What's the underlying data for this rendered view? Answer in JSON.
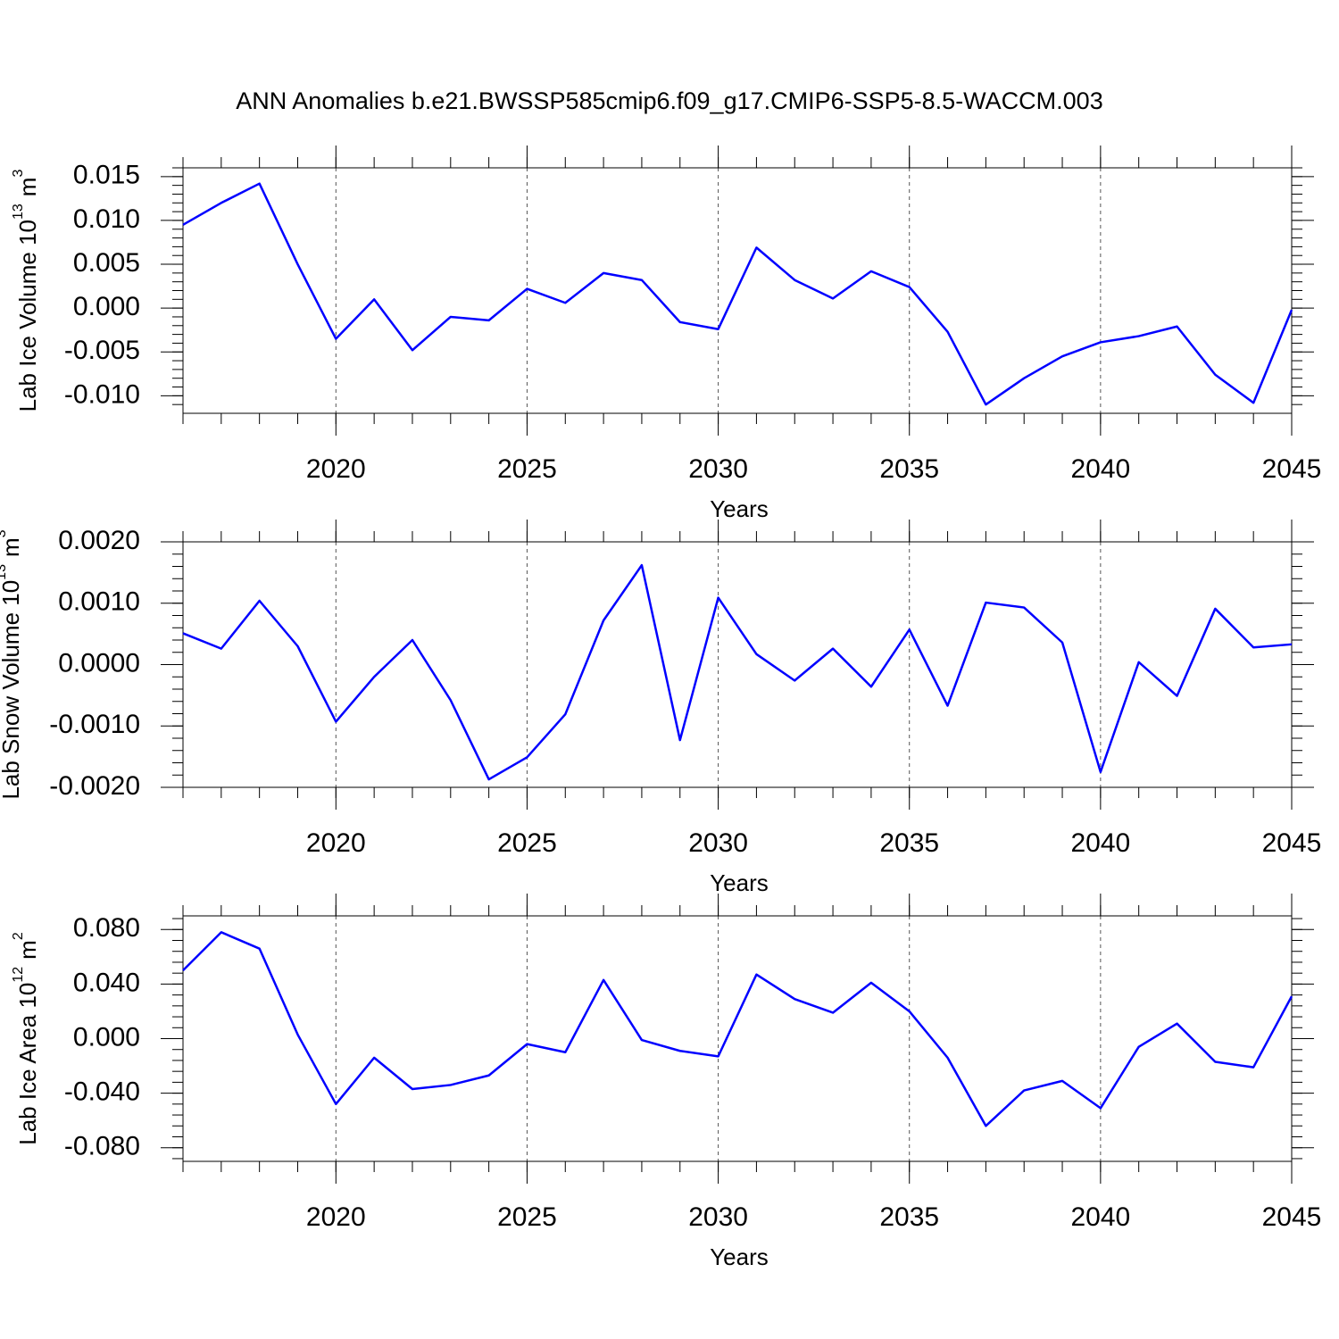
{
  "title": "ANN Anomalies b.e21.BWSSP585cmip6.f09_g17.CMIP6-SSP5-8.5-WACCM.003",
  "chart_data": [
    {
      "type": "line",
      "xlabel": "Years",
      "ylabel": {
        "text": "Lab Ice Volume 10",
        "exp": "13",
        "unit": "m",
        "unit_exp": "3"
      },
      "x": [
        2016,
        2017,
        2018,
        2019,
        2020,
        2021,
        2022,
        2023,
        2024,
        2025,
        2026,
        2027,
        2028,
        2029,
        2030,
        2031,
        2032,
        2033,
        2034,
        2035,
        2036,
        2037,
        2038,
        2039,
        2040,
        2041,
        2042,
        2043,
        2044,
        2045
      ],
      "series": [
        {
          "color": "#0000ff",
          "values": [
            0.0095,
            0.012,
            0.0142,
            0.005,
            -0.0035,
            0.001,
            -0.0048,
            -0.001,
            -0.0014,
            0.0022,
            0.0006,
            0.004,
            0.0032,
            -0.0016,
            -0.0024,
            0.0069,
            0.0032,
            0.0011,
            0.0042,
            0.0024,
            -0.0027,
            -0.011,
            -0.008,
            -0.0055,
            -0.0039,
            -0.0032,
            -0.0021,
            -0.0076,
            -0.0108,
            -0.0002
          ]
        }
      ],
      "xlim": [
        2016,
        2045
      ],
      "xticks": [
        2020,
        2025,
        2030,
        2035,
        2040,
        2045
      ],
      "ylim": [
        -0.012,
        0.016
      ],
      "yticks": [
        0.015,
        {
          "value": 0.01,
          "label": "0.010"
        },
        0.005,
        {
          "value": 0,
          "label": "0.000"
        },
        -0.005,
        {
          "value": -0.01,
          "label": "-0.010"
        }
      ],
      "grid": "x"
    },
    {
      "type": "line",
      "xlabel": "Years",
      "ylabel": {
        "text": "Lab Snow Volume 10",
        "exp": "13",
        "unit": "m",
        "unit_exp": "3"
      },
      "x": [
        2016,
        2017,
        2018,
        2019,
        2020,
        2021,
        2022,
        2023,
        2024,
        2025,
        2026,
        2027,
        2028,
        2029,
        2030,
        2031,
        2032,
        2033,
        2034,
        2035,
        2036,
        2037,
        2038,
        2039,
        2040,
        2041,
        2042,
        2043,
        2044,
        2045
      ],
      "series": [
        {
          "color": "#0000ff",
          "values": [
            0.00051,
            0.00026,
            0.00104,
            0.0003,
            -0.00093,
            -0.0002,
            0.0004,
            -0.00058,
            -0.00187,
            -0.00151,
            -0.00081,
            0.00072,
            0.00162,
            -0.00123,
            0.00109,
            0.00017,
            -0.00026,
            0.00026,
            -0.00036,
            0.00057,
            -0.00067,
            0.00101,
            0.00093,
            0.00036,
            -0.00175,
            4e-05,
            -0.00051,
            0.00091,
            0.00028,
            0.00033
          ]
        }
      ],
      "xlim": [
        2016,
        2045
      ],
      "xticks": [
        2020,
        2025,
        2030,
        2035,
        2040,
        2045
      ],
      "ylim": [
        -0.002,
        0.002
      ],
      "yticks": [
        {
          "value": 0.002,
          "label": "0.0020"
        },
        {
          "value": 0.001,
          "label": "0.0010"
        },
        {
          "value": 0,
          "label": "0.0000"
        },
        {
          "value": -0.001,
          "label": "-0.0010"
        },
        {
          "value": -0.002,
          "label": "-0.0020"
        }
      ],
      "grid": "x"
    },
    {
      "type": "line",
      "xlabel": "Years",
      "ylabel": {
        "text": "Lab Ice Area 10",
        "exp": "12",
        "unit": "m",
        "unit_exp": "2"
      },
      "x": [
        2016,
        2017,
        2018,
        2019,
        2020,
        2021,
        2022,
        2023,
        2024,
        2025,
        2026,
        2027,
        2028,
        2029,
        2030,
        2031,
        2032,
        2033,
        2034,
        2035,
        2036,
        2037,
        2038,
        2039,
        2040,
        2041,
        2042,
        2043,
        2044,
        2045
      ],
      "series": [
        {
          "color": "#0000ff",
          "values": [
            0.05,
            0.078,
            0.066,
            0.003,
            -0.048,
            -0.014,
            -0.037,
            -0.034,
            -0.027,
            -0.004,
            -0.01,
            0.043,
            -0.001,
            -0.009,
            -0.013,
            0.047,
            0.029,
            0.019,
            0.041,
            0.02,
            -0.014,
            -0.064,
            -0.038,
            -0.031,
            -0.051,
            -0.006,
            0.011,
            -0.017,
            -0.021,
            0.031
          ]
        }
      ],
      "xlim": [
        2016,
        2045
      ],
      "xticks": [
        2020,
        2025,
        2030,
        2035,
        2040,
        2045
      ],
      "ylim": [
        -0.09,
        0.09
      ],
      "yticks": [
        {
          "value": 0.08,
          "label": "0.080"
        },
        {
          "value": 0.04,
          "label": "0.040"
        },
        {
          "value": 0,
          "label": "0.000"
        },
        {
          "value": -0.04,
          "label": "-0.040"
        },
        {
          "value": -0.08,
          "label": "-0.080"
        }
      ],
      "grid": "x"
    }
  ]
}
